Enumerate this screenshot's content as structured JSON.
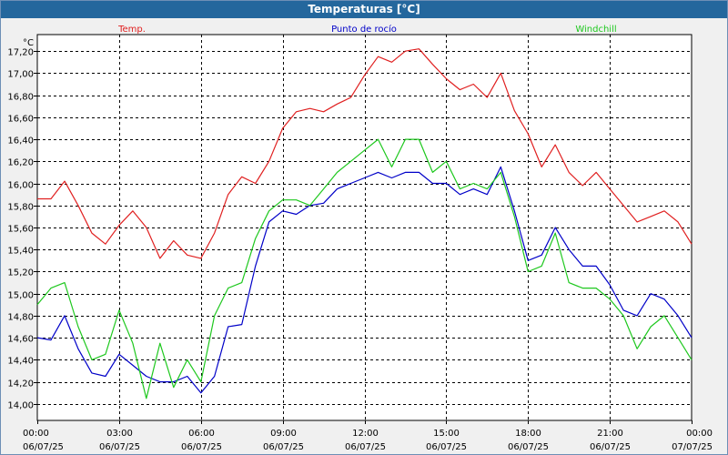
{
  "window": {
    "title": "Temperaturas [°C]"
  },
  "chart_data": {
    "type": "line",
    "title": "Temperaturas [°C]",
    "ylabel": "°C",
    "ylim": [
      13.85,
      17.35
    ],
    "xlim": [
      0,
      24
    ],
    "grid": true,
    "legend_placement": "top",
    "y_ticks": [
      "14,00",
      "14,20",
      "14,40",
      "14,60",
      "14,80",
      "15,00",
      "15,20",
      "15,40",
      "15,60",
      "15,80",
      "16,00",
      "16,20",
      "16,40",
      "16,60",
      "16,80",
      "17,00",
      "17,20"
    ],
    "x_ticks": [
      {
        "time": "00:00",
        "date": "06/07/25"
      },
      {
        "time": "03:00",
        "date": "06/07/25"
      },
      {
        "time": "06:00",
        "date": "06/07/25"
      },
      {
        "time": "09:00",
        "date": "06/07/25"
      },
      {
        "time": "12:00",
        "date": "06/07/25"
      },
      {
        "time": "15:00",
        "date": "06/07/25"
      },
      {
        "time": "18:00",
        "date": "06/07/25"
      },
      {
        "time": "21:00",
        "date": "06/07/25"
      },
      {
        "time": "00:00",
        "date": "07/07/25"
      }
    ],
    "x": [
      0,
      0.5,
      1,
      1.5,
      2,
      2.5,
      3,
      3.5,
      4,
      4.5,
      5,
      5.5,
      6,
      6.5,
      7,
      7.5,
      8,
      8.5,
      9,
      9.5,
      10,
      10.5,
      11,
      11.5,
      12,
      12.5,
      13,
      13.5,
      14,
      14.5,
      15,
      15.5,
      16,
      16.5,
      17,
      17.5,
      18,
      18.5,
      19,
      19.5,
      20,
      20.5,
      21,
      21.5,
      22,
      22.5,
      23,
      23.5,
      24
    ],
    "series": [
      {
        "name": "Temp.",
        "color": "#e02020",
        "values": [
          15.86,
          15.86,
          16.02,
          15.8,
          15.55,
          15.45,
          15.62,
          15.75,
          15.6,
          15.32,
          15.48,
          15.35,
          15.32,
          15.55,
          15.9,
          16.06,
          16.0,
          16.2,
          16.5,
          16.65,
          16.68,
          16.65,
          16.72,
          16.78,
          16.98,
          17.15,
          17.1,
          17.2,
          17.22,
          17.08,
          16.95,
          16.85,
          16.9,
          16.78,
          17.0,
          16.66,
          16.45,
          16.15,
          16.35,
          16.1,
          15.98,
          16.1,
          15.95,
          15.8,
          15.65,
          15.7,
          15.75,
          15.65,
          15.45
        ]
      },
      {
        "name": "Punto de rocío",
        "color": "#0000c8",
        "values": [
          14.6,
          14.58,
          14.8,
          14.5,
          14.28,
          14.25,
          14.45,
          14.35,
          14.25,
          14.2,
          14.2,
          14.25,
          14.1,
          14.25,
          14.7,
          14.72,
          15.25,
          15.65,
          15.75,
          15.72,
          15.8,
          15.82,
          15.95,
          16.0,
          16.05,
          16.1,
          16.05,
          16.1,
          16.1,
          16.0,
          16.0,
          15.9,
          15.95,
          15.9,
          16.15,
          15.75,
          15.3,
          15.35,
          15.6,
          15.4,
          15.25,
          15.25,
          15.08,
          14.85,
          14.8,
          15.0,
          14.95,
          14.8,
          14.6
        ]
      },
      {
        "name": "Windchill",
        "color": "#1ec81e",
        "values": [
          14.9,
          15.05,
          15.1,
          14.7,
          14.4,
          14.45,
          14.85,
          14.55,
          14.05,
          14.55,
          14.15,
          14.4,
          14.2,
          14.8,
          15.05,
          15.1,
          15.5,
          15.75,
          15.85,
          15.85,
          15.8,
          15.95,
          16.1,
          16.2,
          16.3,
          16.4,
          16.15,
          16.4,
          16.4,
          16.1,
          16.2,
          15.95,
          16.0,
          15.95,
          16.1,
          15.7,
          15.2,
          15.25,
          15.55,
          15.1,
          15.05,
          15.05,
          14.95,
          14.8,
          14.5,
          14.7,
          14.8,
          14.6,
          14.4
        ]
      }
    ]
  }
}
